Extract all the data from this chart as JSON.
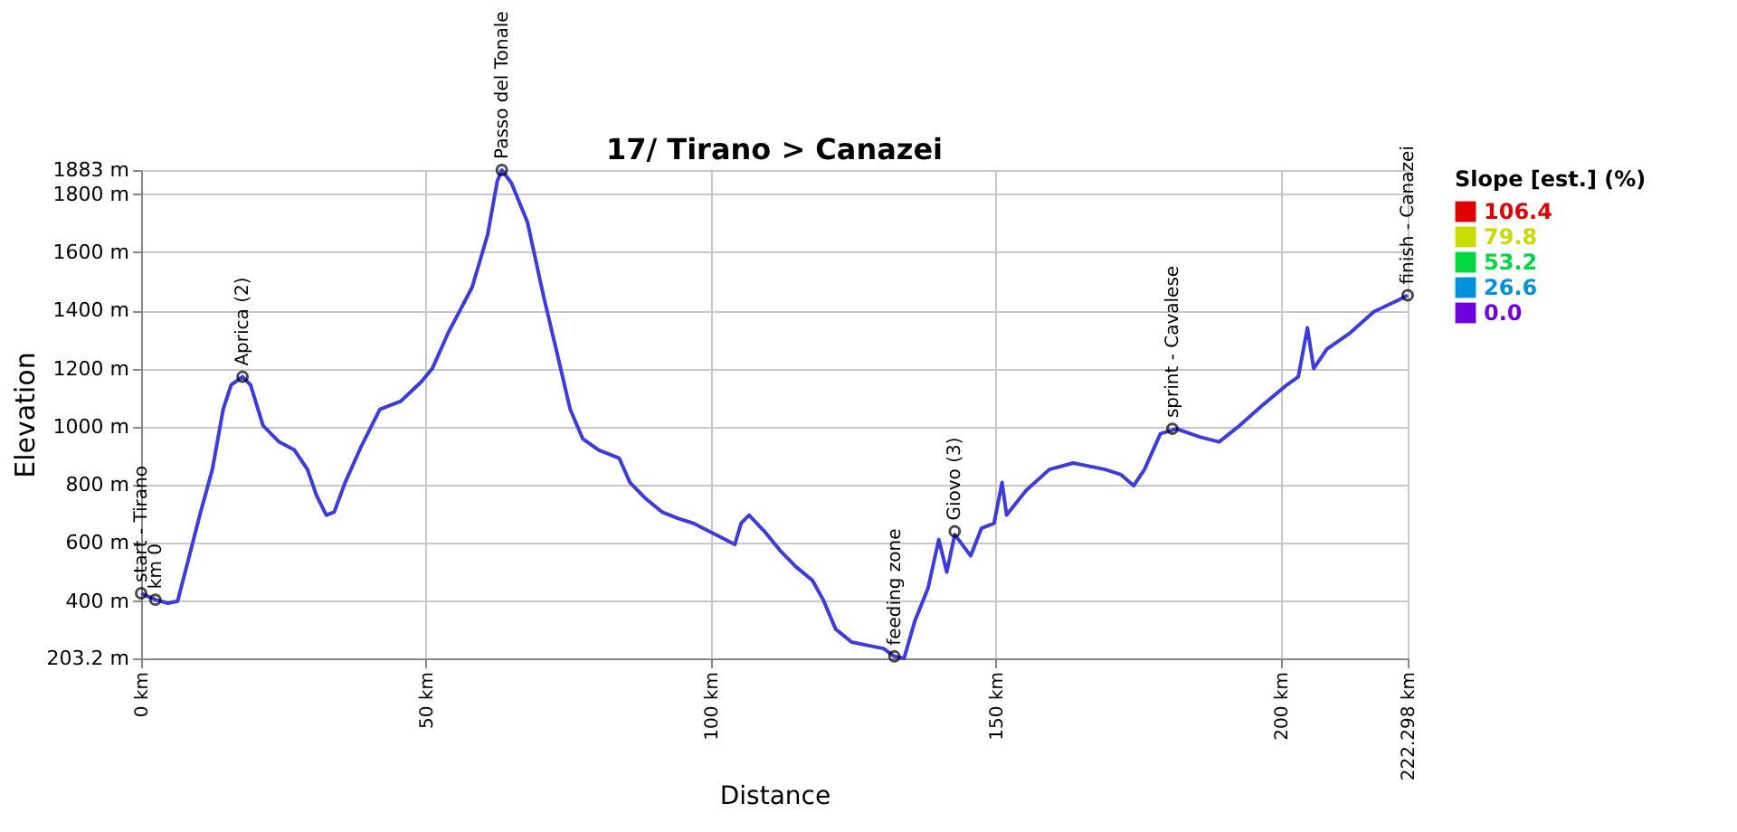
{
  "chart_data": {
    "type": "line",
    "title": "17/ Tirano > Canazei",
    "xlabel": "Distance",
    "ylabel": "Elevation",
    "x": [
      0,
      2.5,
      4.7,
      6.4,
      8.1,
      10.3,
      12.5,
      14.4,
      15.8,
      17.8,
      19.2,
      21.4,
      24.2,
      26.9,
      29.2,
      30.8,
      32.5,
      33.9,
      35.8,
      38.6,
      41.9,
      45.6,
      49.2,
      51.1,
      53.9,
      58.1,
      60.8,
      62.5,
      63.3,
      65,
      67.8,
      70.6,
      73.3,
      75.3,
      77.5,
      80.3,
      83.9,
      85.8,
      88.6,
      91.4,
      94.2,
      96.9,
      99.7,
      102.5,
      104.2,
      105.3,
      106.7,
      109.4,
      112.2,
      115,
      117.8,
      119.7,
      121.9,
      124.7,
      127.5,
      130.3,
      132.2,
      133.9,
      135.8,
      138.1,
      140,
      141.4,
      142.8,
      145.6,
      147.5,
      149.7,
      151.1,
      151.9,
      155.3,
      159.4,
      163.6,
      169.2,
      171.9,
      174.2,
      176.1,
      178.9,
      181.7,
      185.8,
      189.2,
      192.8,
      197,
      201.1,
      203.1,
      204.7,
      205.8,
      208.1,
      212.2,
      216.4,
      220.6,
      222.298
    ],
    "values": [
      427,
      405,
      393,
      400,
      528,
      696,
      853,
      1060,
      1144,
      1172,
      1144,
      1004,
      948,
      920,
      853,
      763,
      696,
      707,
      808,
      931,
      1060,
      1088,
      1155,
      1200,
      1323,
      1480,
      1659,
      1844,
      1883,
      1838,
      1704,
      1452,
      1228,
      1060,
      959,
      920,
      892,
      808,
      752,
      707,
      685,
      668,
      640,
      612,
      595,
      668,
      696,
      640,
      573,
      517,
      472,
      405,
      304,
      259,
      248,
      237,
      210,
      203.2,
      332,
      444,
      612,
      500,
      629,
      556,
      651,
      668,
      808,
      696,
      780,
      853,
      875,
      853,
      836,
      797,
      853,
      976,
      993,
      965,
      948,
      1004,
      1077,
      1144,
      1172,
      1340,
      1200,
      1267,
      1323,
      1396,
      1435,
      1452
    ],
    "color": "#3c3cdc",
    "xlim": [
      0,
      222.298
    ],
    "xticks": [
      {
        "value": 0,
        "label": "0 km"
      },
      {
        "value": 50,
        "label": "50 km"
      },
      {
        "value": 100,
        "label": "100 km"
      },
      {
        "value": 150,
        "label": "150 km"
      },
      {
        "value": 200,
        "label": "200 km"
      },
      {
        "value": 222.298,
        "label": "222.298 km"
      }
    ],
    "ylim": [
      203.2,
      1883
    ],
    "yticks": [
      {
        "value": 203.2,
        "label": "203.2 m"
      },
      {
        "value": 400,
        "label": "400 m"
      },
      {
        "value": 600,
        "label": "600 m"
      },
      {
        "value": 800,
        "label": "800 m"
      },
      {
        "value": 1000,
        "label": "1000 m"
      },
      {
        "value": 1200,
        "label": "1200 m"
      },
      {
        "value": 1400,
        "label": "1400 m"
      },
      {
        "value": 1600,
        "label": "1600 m"
      },
      {
        "value": 1800,
        "label": "1800 m"
      },
      {
        "value": 1883,
        "label": "1883 m"
      }
    ],
    "grid": true,
    "clabel": "Slope [est.] (%)",
    "cticks": [
      {
        "value": 106.4,
        "label": "106.4"
      },
      {
        "value": 79.8,
        "label": "79.8"
      },
      {
        "value": 53.2,
        "label": "53.2"
      },
      {
        "value": 26.6,
        "label": "26.6"
      },
      {
        "value": 0,
        "label": "0.0"
      }
    ],
    "annotations": [
      {
        "text": "start - Tirano",
        "x": 0,
        "y": 427
      },
      {
        "text": "km 0",
        "x": 2.5,
        "y": 405
      },
      {
        "text": "Aprica (2)",
        "x": 17.8,
        "y": 1172
      },
      {
        "text": "Passo del Tonale",
        "x": 63.3,
        "y": 1883
      },
      {
        "text": "feeding zone",
        "x": 132.2,
        "y": 210
      },
      {
        "text": "Giovo (3)",
        "x": 142.8,
        "y": 640
      },
      {
        "text": "sprint - Cavalese",
        "x": 181,
        "y": 993
      },
      {
        "text": "finish - Canazei",
        "x": 222.298,
        "y": 1452
      }
    ]
  }
}
